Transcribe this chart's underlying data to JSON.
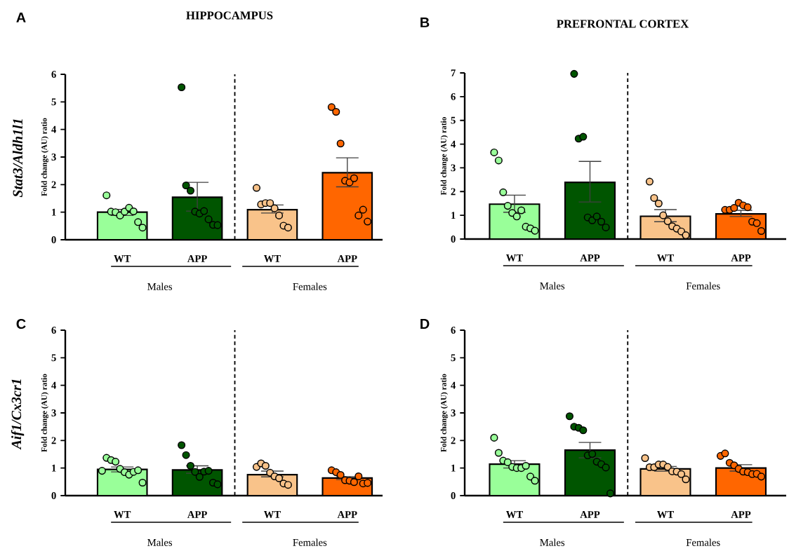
{
  "chart_data": [
    {
      "type": "bar",
      "title": "HIPPOCAMPUS",
      "subtitle": "Stat3/Aldh1l1",
      "ylabel": "Fold change (AU) ratio",
      "categories": [
        "WT",
        "APP",
        "WT",
        "APP"
      ],
      "ylim": [
        0,
        6
      ],
      "yticks": [
        0,
        1,
        2,
        3,
        4,
        5,
        6
      ],
      "marker": "circle",
      "annotations": [
        "A",
        "Males",
        "Females"
      ],
      "series": [
        {
          "values": [
            1.0,
            1.54,
            1.09,
            2.43
          ],
          "colors": [
            "#99ff99",
            "#005500",
            "#f9c38a",
            "#ff6600"
          ],
          "errors": [
            [
              0.88,
              1.1
            ],
            [
              1.04,
              2.08
            ],
            [
              0.97,
              1.26
            ],
            [
              1.92,
              2.97
            ]
          ]
        },
        {
          "type": "scatter",
          "values": [
            1.61,
            5.53,
            1.88,
            4.81
          ],
          "colors": [
            "#99ff99",
            "#005500",
            "#f9c38a",
            "#ff6600"
          ]
        },
        {
          "type": "scatter",
          "values": [
            1.02,
            1.97,
            1.28,
            4.64
          ],
          "colors": [
            "#99ff99",
            "#005500",
            "#f9c38a",
            "#ff6600"
          ]
        },
        {
          "type": "scatter",
          "values": [
            1.0,
            1.78,
            1.33,
            3.49
          ],
          "colors": [
            "#99ff99",
            "#005500",
            "#f9c38a",
            "#ff6600"
          ]
        },
        {
          "type": "scatter",
          "values": [
            0.88,
            1.02,
            1.33,
            2.14
          ],
          "colors": [
            "#99ff99",
            "#005500",
            "#f9c38a",
            "#ff6600"
          ]
        },
        {
          "type": "scatter",
          "values": [
            1.02,
            0.95,
            1.14,
            2.08
          ],
          "colors": [
            "#99ff99",
            "#005500",
            "#f9c38a",
            "#ff6600"
          ]
        },
        {
          "type": "scatter",
          "values": [
            1.16,
            1.04,
            0.88,
            2.23
          ],
          "colors": [
            "#99ff99",
            "#005500",
            "#f9c38a",
            "#ff6600"
          ]
        },
        {
          "type": "scatter",
          "values": [
            1.03,
            0.74,
            0.51,
            0.88
          ],
          "colors": [
            "#99ff99",
            "#005500",
            "#f9c38a",
            "#ff6600"
          ]
        },
        {
          "type": "scatter",
          "values": [
            0.64,
            0.54,
            0.44,
            1.09
          ],
          "colors": [
            "#99ff99",
            "#005500",
            "#f9c38a",
            "#ff6600"
          ]
        },
        {
          "type": "scatter",
          "values": [
            0.44,
            0.53,
            null,
            0.66
          ],
          "colors": [
            "#99ff99",
            "#005500",
            "#f9c38a",
            "#ff6600"
          ]
        }
      ]
    },
    {
      "type": "bar",
      "title": "PREFRONTAL CORTEX",
      "ylabel": "Fold change (AU) ratio",
      "categories": [
        "WT",
        "APP",
        "WT",
        "APP"
      ],
      "ylim": [
        0,
        7
      ],
      "yticks": [
        0,
        1,
        2,
        3,
        4,
        5,
        6,
        7
      ],
      "marker": "circle",
      "annotations": [
        "B",
        "Males",
        "Females"
      ],
      "series": [
        {
          "values": [
            1.47,
            2.39,
            0.96,
            1.06
          ],
          "colors": [
            "#99ff99",
            "#005500",
            "#f9c38a",
            "#ff6600"
          ],
          "errors": [
            [
              1.13,
              1.85
            ],
            [
              1.56,
              3.27
            ],
            [
              0.73,
              1.24
            ],
            [
              0.95,
              1.21
            ]
          ]
        },
        {
          "type": "scatter",
          "values": [
            3.65,
            6.96,
            2.42,
            1.23
          ],
          "colors": [
            "#99ff99",
            "#005500",
            "#f9c38a",
            "#ff6600"
          ]
        },
        {
          "type": "scatter",
          "values": [
            3.31,
            4.23,
            1.73,
            1.23
          ],
          "colors": [
            "#99ff99",
            "#005500",
            "#f9c38a",
            "#ff6600"
          ]
        },
        {
          "type": "scatter",
          "values": [
            1.97,
            4.31,
            1.5,
            1.31
          ],
          "colors": [
            "#99ff99",
            "#005500",
            "#f9c38a",
            "#ff6600"
          ]
        },
        {
          "type": "scatter",
          "values": [
            1.4,
            0.91,
            1.0,
            1.53
          ],
          "colors": [
            "#99ff99",
            "#005500",
            "#f9c38a",
            "#ff6600"
          ]
        },
        {
          "type": "scatter",
          "values": [
            1.1,
            0.79,
            0.75,
            1.42
          ],
          "colors": [
            "#99ff99",
            "#005500",
            "#f9c38a",
            "#ff6600"
          ]
        },
        {
          "type": "scatter",
          "values": [
            0.95,
            0.95,
            0.54,
            1.34
          ],
          "colors": [
            "#99ff99",
            "#005500",
            "#f9c38a",
            "#ff6600"
          ]
        },
        {
          "type": "scatter",
          "values": [
            1.21,
            0.73,
            0.44,
            0.73
          ],
          "colors": [
            "#99ff99",
            "#005500",
            "#f9c38a",
            "#ff6600"
          ]
        },
        {
          "type": "scatter",
          "values": [
            0.52,
            0.49,
            0.32,
            0.67
          ],
          "colors": [
            "#99ff99",
            "#005500",
            "#f9c38a",
            "#ff6600"
          ]
        },
        {
          "type": "scatter",
          "values": [
            0.45,
            null,
            0.16,
            0.34
          ],
          "colors": [
            "#99ff99",
            "#005500",
            "#f9c38a",
            "#ff6600"
          ]
        },
        {
          "type": "scatter",
          "values": [
            0.35,
            null,
            null,
            null
          ],
          "colors": [
            "#99ff99",
            "#005500",
            "#f9c38a",
            "#ff6600"
          ]
        }
      ]
    },
    {
      "type": "bar",
      "subtitle": "Aif1/Cx3cr1",
      "ylabel": "Fold change (AU) ratio",
      "categories": [
        "WT",
        "APP",
        "WT",
        "APP"
      ],
      "ylim": [
        0,
        6
      ],
      "yticks": [
        0,
        1,
        2,
        3,
        4,
        5,
        6
      ],
      "marker": "circle",
      "annotations": [
        "C",
        "Males",
        "Females"
      ],
      "series": [
        {
          "values": [
            0.95,
            0.93,
            0.76,
            0.64
          ],
          "colors": [
            "#99ff99",
            "#005500",
            "#f9c38a",
            "#ff6600"
          ],
          "errors": [
            [
              0.86,
              1.04
            ],
            [
              0.81,
              1.08
            ],
            [
              0.68,
              0.89
            ],
            [
              0.58,
              0.69
            ]
          ]
        },
        {
          "type": "scatter",
          "values": [
            0.9,
            1.83,
            1.04,
            0.92
          ],
          "colors": [
            "#99ff99",
            "#005500",
            "#f9c38a",
            "#ff6600"
          ]
        },
        {
          "type": "scatter",
          "values": [
            1.37,
            1.47,
            1.17,
            0.85
          ],
          "colors": [
            "#99ff99",
            "#005500",
            "#f9c38a",
            "#ff6600"
          ]
        },
        {
          "type": "scatter",
          "values": [
            1.29,
            1.08,
            1.08,
            0.75
          ],
          "colors": [
            "#99ff99",
            "#005500",
            "#f9c38a",
            "#ff6600"
          ]
        },
        {
          "type": "scatter",
          "values": [
            1.23,
            0.86,
            0.83,
            0.56
          ],
          "colors": [
            "#99ff99",
            "#005500",
            "#f9c38a",
            "#ff6600"
          ]
        },
        {
          "type": "scatter",
          "values": [
            0.97,
            0.68,
            0.7,
            0.54
          ],
          "colors": [
            "#99ff99",
            "#005500",
            "#f9c38a",
            "#ff6600"
          ]
        },
        {
          "type": "scatter",
          "values": [
            0.85,
            0.87,
            0.63,
            0.49
          ],
          "colors": [
            "#99ff99",
            "#005500",
            "#f9c38a",
            "#ff6600"
          ]
        },
        {
          "type": "scatter",
          "values": [
            0.76,
            0.9,
            0.44,
            0.7
          ],
          "colors": [
            "#99ff99",
            "#005500",
            "#f9c38a",
            "#ff6600"
          ]
        },
        {
          "type": "scatter",
          "values": [
            0.86,
            0.47,
            0.39,
            0.44
          ],
          "colors": [
            "#99ff99",
            "#005500",
            "#f9c38a",
            "#ff6600"
          ]
        },
        {
          "type": "scatter",
          "values": [
            0.92,
            0.41,
            null,
            0.46
          ],
          "colors": [
            "#99ff99",
            "#005500",
            "#f9c38a",
            "#ff6600"
          ]
        },
        {
          "type": "scatter",
          "values": [
            0.47,
            null,
            null,
            null
          ],
          "colors": [
            "#99ff99",
            "#005500",
            "#f9c38a",
            "#ff6600"
          ]
        }
      ]
    },
    {
      "type": "bar",
      "ylabel": "Fold change (AU) ratio",
      "categories": [
        "WT",
        "APP",
        "WT",
        "APP"
      ],
      "ylim": [
        0,
        6
      ],
      "yticks": [
        0,
        1,
        2,
        3,
        4,
        5,
        6
      ],
      "marker": "circle",
      "annotations": [
        "D",
        "Males",
        "Females"
      ],
      "series": [
        {
          "values": [
            1.14,
            1.65,
            0.97,
            1.0
          ],
          "colors": [
            "#99ff99",
            "#005500",
            "#f9c38a",
            "#ff6600"
          ],
          "errors": [
            [
              1.0,
              1.27
            ],
            [
              1.37,
              1.93
            ],
            [
              0.89,
              1.06
            ],
            [
              0.89,
              1.12
            ]
          ]
        },
        {
          "type": "scatter",
          "values": [
            2.1,
            2.88,
            1.36,
            1.44
          ],
          "colors": [
            "#99ff99",
            "#005500",
            "#f9c38a",
            "#ff6600"
          ]
        },
        {
          "type": "scatter",
          "values": [
            1.55,
            2.5,
            1.03,
            1.53
          ],
          "colors": [
            "#99ff99",
            "#005500",
            "#f9c38a",
            "#ff6600"
          ]
        },
        {
          "type": "scatter",
          "values": [
            1.27,
            2.46,
            1.03,
            1.19
          ],
          "colors": [
            "#99ff99",
            "#005500",
            "#f9c38a",
            "#ff6600"
          ]
        },
        {
          "type": "scatter",
          "values": [
            1.21,
            2.37,
            1.13,
            1.1
          ],
          "colors": [
            "#99ff99",
            "#005500",
            "#f9c38a",
            "#ff6600"
          ]
        },
        {
          "type": "scatter",
          "values": [
            1.04,
            1.46,
            1.13,
            0.97
          ],
          "colors": [
            "#99ff99",
            "#005500",
            "#f9c38a",
            "#ff6600"
          ]
        },
        {
          "type": "scatter",
          "values": [
            1.0,
            1.51,
            1.04,
            0.87
          ],
          "colors": [
            "#99ff99",
            "#005500",
            "#f9c38a",
            "#ff6600"
          ]
        },
        {
          "type": "scatter",
          "values": [
            1.0,
            1.23,
            0.88,
            0.85
          ],
          "colors": [
            "#99ff99",
            "#005500",
            "#f9c38a",
            "#ff6600"
          ]
        },
        {
          "type": "scatter",
          "values": [
            1.08,
            1.14,
            0.87,
            0.78
          ],
          "colors": [
            "#99ff99",
            "#005500",
            "#f9c38a",
            "#ff6600"
          ]
        },
        {
          "type": "scatter",
          "values": [
            0.69,
            1.02,
            0.78,
            0.79
          ],
          "colors": [
            "#99ff99",
            "#005500",
            "#f9c38a",
            "#ff6600"
          ]
        },
        {
          "type": "scatter",
          "values": [
            0.54,
            0.08,
            0.59,
            0.69
          ],
          "colors": [
            "#99ff99",
            "#005500",
            "#f9c38a",
            "#ff6600"
          ]
        }
      ]
    }
  ]
}
